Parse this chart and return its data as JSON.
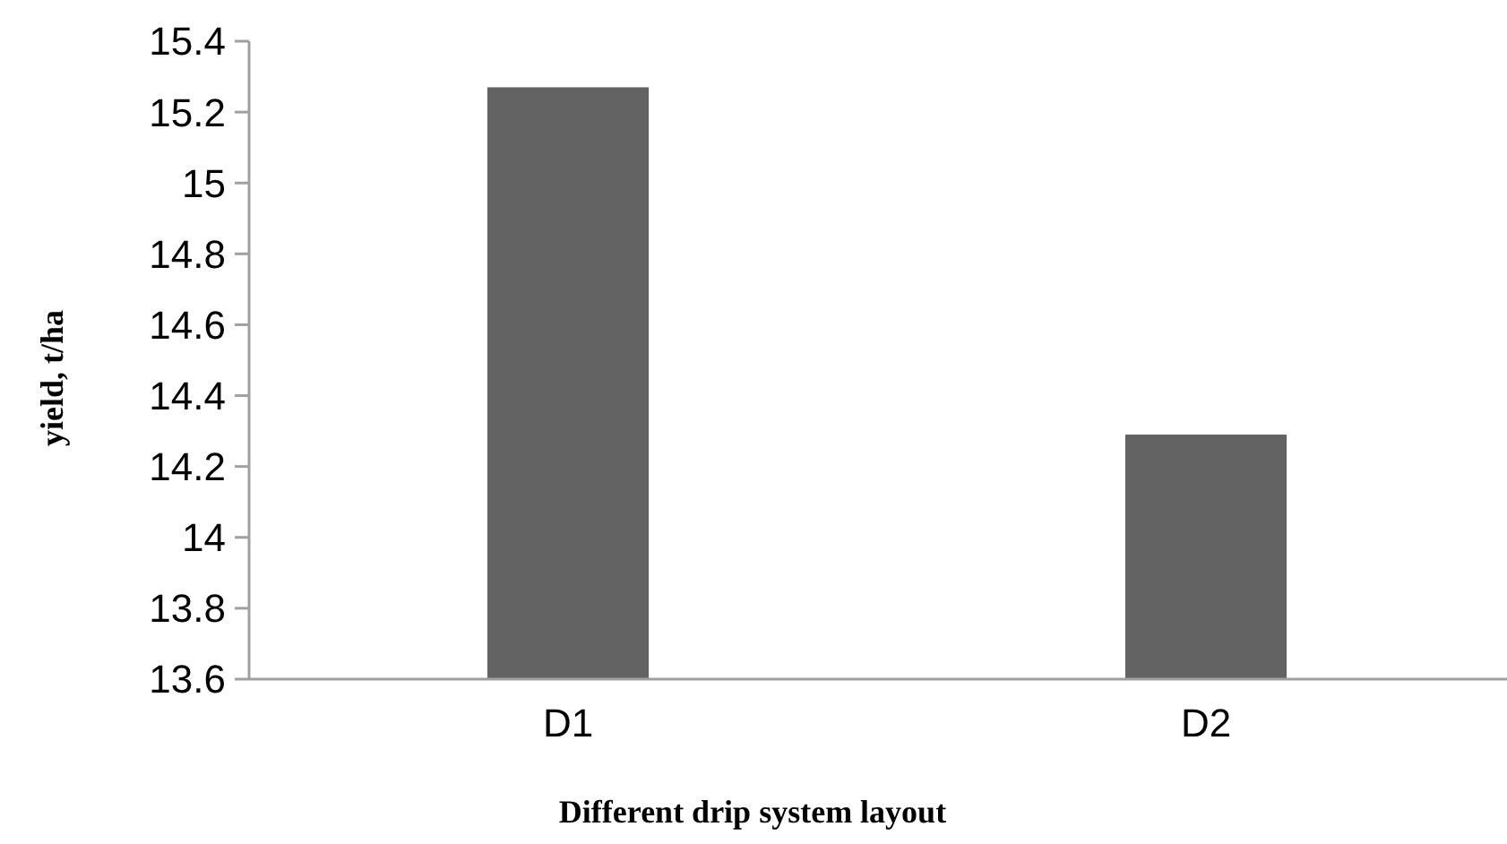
{
  "chart_data": {
    "type": "bar",
    "xlabel": "Different drip system layout",
    "ylabel": "yield, t/ha",
    "categories": [
      "D1",
      "D2"
    ],
    "values": [
      15.27,
      14.29
    ],
    "color": "#636363",
    "ylim": [
      13.6,
      15.4
    ],
    "yticks": [
      13.6,
      13.8,
      14,
      14.2,
      14.4,
      14.6,
      14.8,
      15,
      15.2,
      15.4
    ]
  }
}
